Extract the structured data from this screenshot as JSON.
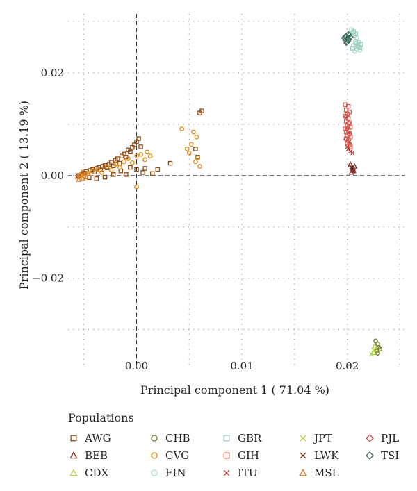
{
  "chart_data": {
    "type": "scatter",
    "title": "",
    "xlabel": "Principal component 1 ( 71.04 %)",
    "ylabel": "Principal component 2 ( 13.19 %)",
    "xlim": [
      -0.0065,
      0.0255
    ],
    "ylim": [
      -0.0375,
      0.0315
    ],
    "xticks": [
      0.0,
      0.01,
      0.02
    ],
    "xticklabels": [
      "0.00",
      "0.01",
      "0.02"
    ],
    "yticks": [
      -0.02,
      0.0,
      0.02
    ],
    "yticklabels": [
      "−0.02",
      "0.00",
      "0.02"
    ],
    "grid": "dotted",
    "reference_lines": {
      "x": 0,
      "y": 0,
      "style": "dashed"
    },
    "legend": {
      "title": "Populations",
      "placement": "bottom"
    },
    "series": [
      {
        "name": "AWG",
        "marker": "square",
        "color": "#8c4a14",
        "points": [
          [
            -0.0055,
            0.0
          ],
          [
            -0.0052,
            0.0003
          ],
          [
            -0.005,
            0.0005
          ],
          [
            -0.0048,
            0.0008
          ],
          [
            -0.0046,
            0.0004
          ],
          [
            -0.0044,
            0.001
          ],
          [
            -0.0042,
            0.0012
          ],
          [
            -0.004,
            0.0007
          ],
          [
            -0.0038,
            0.0014
          ],
          [
            -0.0036,
            0.0016
          ],
          [
            -0.0034,
            0.0011
          ],
          [
            -0.0032,
            0.0018
          ],
          [
            -0.003,
            0.002
          ],
          [
            -0.0028,
            0.0015
          ],
          [
            -0.0026,
            0.0022
          ],
          [
            -0.0024,
            0.0026
          ],
          [
            -0.0022,
            0.0019
          ],
          [
            -0.002,
            0.003
          ],
          [
            -0.0018,
            0.0033
          ],
          [
            -0.0016,
            0.0024
          ],
          [
            -0.0014,
            0.0038
          ],
          [
            -0.0012,
            0.0042
          ],
          [
            -0.001,
            0.0036
          ],
          [
            -0.0008,
            0.005
          ],
          [
            -0.0006,
            0.0046
          ],
          [
            -0.0004,
            0.0055
          ],
          [
            -0.0002,
            0.006
          ],
          [
            0.0,
            0.0066
          ],
          [
            0.0002,
            0.0072
          ],
          [
            0.0004,
            0.0056
          ],
          [
            -0.0045,
            -0.0004
          ],
          [
            -0.0038,
            -0.0006
          ],
          [
            -0.003,
            -0.0003
          ],
          [
            -0.0022,
            0.0002
          ],
          [
            -0.0015,
            0.0009
          ],
          [
            -0.001,
            0.0002
          ],
          [
            -0.0006,
            0.0016
          ],
          [
            0.0,
            0.0012
          ],
          [
            0.0006,
            0.0006
          ],
          [
            0.0008,
            0.0014
          ],
          [
            0.0015,
            0.0004
          ],
          [
            0.002,
            0.0012
          ],
          [
            0.0032,
            0.0024
          ],
          [
            0.0058,
            0.0036
          ],
          [
            0.006,
            0.0122
          ],
          [
            0.0062,
            0.0126
          ],
          [
            0.0056,
            0.0052
          ]
        ]
      },
      {
        "name": "BEB",
        "marker": "triangle",
        "color": "#7a2a22",
        "points": [
          [
            0.0203,
            0.0022
          ],
          [
            0.0205,
            0.0014
          ],
          [
            0.0207,
            0.0018
          ],
          [
            0.0204,
            0.0006
          ],
          [
            0.0206,
            0.001
          ]
        ]
      },
      {
        "name": "CDX",
        "marker": "triangle",
        "color": "#b8d44a",
        "points": [
          [
            0.0225,
            -0.0345
          ],
          [
            0.0228,
            -0.0338
          ],
          [
            0.0226,
            -0.0332
          ]
        ]
      },
      {
        "name": "CHB",
        "marker": "circle",
        "color": "#6f7a22",
        "points": [
          [
            0.0227,
            -0.0322
          ],
          [
            0.0229,
            -0.0328
          ],
          [
            0.023,
            -0.0335
          ],
          [
            0.0228,
            -0.0342
          ],
          [
            0.0231,
            -0.0338
          ],
          [
            0.0229,
            -0.0346
          ]
        ]
      },
      {
        "name": "CVG",
        "marker": "circle",
        "color": "#e08a16",
        "points": [
          [
            -0.005,
            -0.0002
          ],
          [
            -0.0046,
            0.0004
          ],
          [
            -0.0042,
            0.0009
          ],
          [
            -0.0037,
            0.0012
          ],
          [
            -0.0033,
            0.0006
          ],
          [
            -0.0028,
            0.0017
          ],
          [
            -0.0024,
            0.0011
          ],
          [
            -0.002,
            0.0022
          ],
          [
            -0.0016,
            0.0016
          ],
          [
            -0.0012,
            0.0027
          ],
          [
            -0.0008,
            0.0033
          ],
          [
            -0.0004,
            0.0025
          ],
          [
            0.0,
            0.0038
          ],
          [
            0.0004,
            0.0041
          ],
          [
            0.0008,
            0.0031
          ],
          [
            0.001,
            0.0046
          ],
          [
            0.0013,
            0.0038
          ],
          [
            0.0,
            -0.0022
          ],
          [
            0.0043,
            0.0091
          ],
          [
            0.0048,
            0.0052
          ],
          [
            0.005,
            0.0044
          ],
          [
            0.0052,
            0.0061
          ],
          [
            0.0054,
            0.0085
          ],
          [
            0.0057,
            0.0075
          ],
          [
            0.0058,
            0.0035
          ],
          [
            0.006,
            0.0018
          ],
          [
            0.0056,
            0.0027
          ]
        ]
      },
      {
        "name": "FIN",
        "marker": "circle",
        "color": "#a8d8cc",
        "points": [
          [
            0.0205,
            0.0278
          ],
          [
            0.0207,
            0.0273
          ],
          [
            0.0209,
            0.0268
          ],
          [
            0.0208,
            0.0262
          ],
          [
            0.021,
            0.0256
          ],
          [
            0.0206,
            0.0254
          ],
          [
            0.0211,
            0.025
          ],
          [
            0.0209,
            0.0246
          ],
          [
            0.0207,
            0.0242
          ],
          [
            0.0212,
            0.0244
          ]
        ]
      },
      {
        "name": "GBR",
        "marker": "square",
        "color": "#9ccfbf",
        "points": [
          [
            0.0204,
            0.0284
          ],
          [
            0.0206,
            0.028
          ],
          [
            0.0208,
            0.0276
          ],
          [
            0.0211,
            0.026
          ],
          [
            0.0213,
            0.0256
          ],
          [
            0.021,
            0.0252
          ],
          [
            0.0205,
            0.0248
          ],
          [
            0.0212,
            0.0249
          ],
          [
            0.0208,
            0.0258
          ]
        ]
      },
      {
        "name": "GIH",
        "marker": "square",
        "color": "#d95c55",
        "points": [
          [
            0.0198,
            0.0138
          ],
          [
            0.0201,
            0.0135
          ],
          [
            0.0199,
            0.0128
          ],
          [
            0.0202,
            0.0124
          ],
          [
            0.02,
            0.012
          ],
          [
            0.0198,
            0.0116
          ],
          [
            0.0201,
            0.0111
          ],
          [
            0.0199,
            0.0106
          ],
          [
            0.0202,
            0.0102
          ],
          [
            0.02,
            0.0097
          ],
          [
            0.0203,
            0.0094
          ],
          [
            0.0198,
            0.0091
          ],
          [
            0.0201,
            0.0088
          ],
          [
            0.0199,
            0.0085
          ],
          [
            0.0202,
            0.0082
          ],
          [
            0.02,
            0.0078
          ],
          [
            0.0203,
            0.0075
          ],
          [
            0.0199,
            0.0072
          ],
          [
            0.0201,
            0.0068
          ],
          [
            0.02,
            0.0064
          ],
          [
            0.0202,
            0.006
          ],
          [
            0.0203,
            0.0056
          ]
        ]
      },
      {
        "name": "ITU",
        "marker": "cross",
        "color": "#c0392b",
        "points": [
          [
            0.0201,
            0.0052
          ],
          [
            0.0203,
            0.0047
          ],
          [
            0.0205,
            0.0044
          ],
          [
            0.02,
            0.0056
          ],
          [
            0.0202,
            0.0066
          ]
        ]
      },
      {
        "name": "JPT",
        "marker": "cross",
        "color": "#a6cf3a",
        "points": [
          [
            0.0223,
            -0.0348
          ],
          [
            0.0225,
            -0.034
          ]
        ]
      },
      {
        "name": "LWK",
        "marker": "cross",
        "color": "#7a1f16",
        "points": [
          [
            0.0204,
            0.0016
          ],
          [
            0.0206,
            0.0008
          ]
        ]
      },
      {
        "name": "MSL",
        "marker": "triangle",
        "color": "#d9822b",
        "points": [
          [
            -0.0056,
            -0.0002
          ],
          [
            -0.0053,
            0.0002
          ],
          [
            -0.0055,
            -0.0008
          ],
          [
            -0.0052,
            0.0006
          ],
          [
            -0.0054,
            0.0001
          ],
          [
            -0.0051,
            -0.0005
          ],
          [
            -0.0049,
            0.0003
          ],
          [
            -0.0048,
            -0.0003
          ],
          [
            -0.0046,
            0.0004
          ]
        ]
      },
      {
        "name": "PJL",
        "marker": "diamond",
        "color": "#d24c48",
        "points": [
          [
            0.0199,
            0.0115
          ],
          [
            0.0201,
            0.0102
          ],
          [
            0.02,
            0.0092
          ],
          [
            0.0202,
            0.008
          ],
          [
            0.0199,
            0.0071
          ]
        ]
      },
      {
        "name": "TSI",
        "marker": "diamond",
        "color": "#3f6f5c",
        "points": [
          [
            0.0198,
            0.0264
          ],
          [
            0.02,
            0.0268
          ],
          [
            0.0202,
            0.0266
          ],
          [
            0.0199,
            0.0272
          ],
          [
            0.0201,
            0.0262
          ],
          [
            0.0203,
            0.027
          ],
          [
            0.02,
            0.026
          ],
          [
            0.0197,
            0.0268
          ],
          [
            0.0202,
            0.0274
          ],
          [
            0.0199,
            0.0258
          ],
          [
            0.0201,
            0.0276
          ],
          [
            0.0198,
            0.0271
          ]
        ]
      }
    ]
  }
}
